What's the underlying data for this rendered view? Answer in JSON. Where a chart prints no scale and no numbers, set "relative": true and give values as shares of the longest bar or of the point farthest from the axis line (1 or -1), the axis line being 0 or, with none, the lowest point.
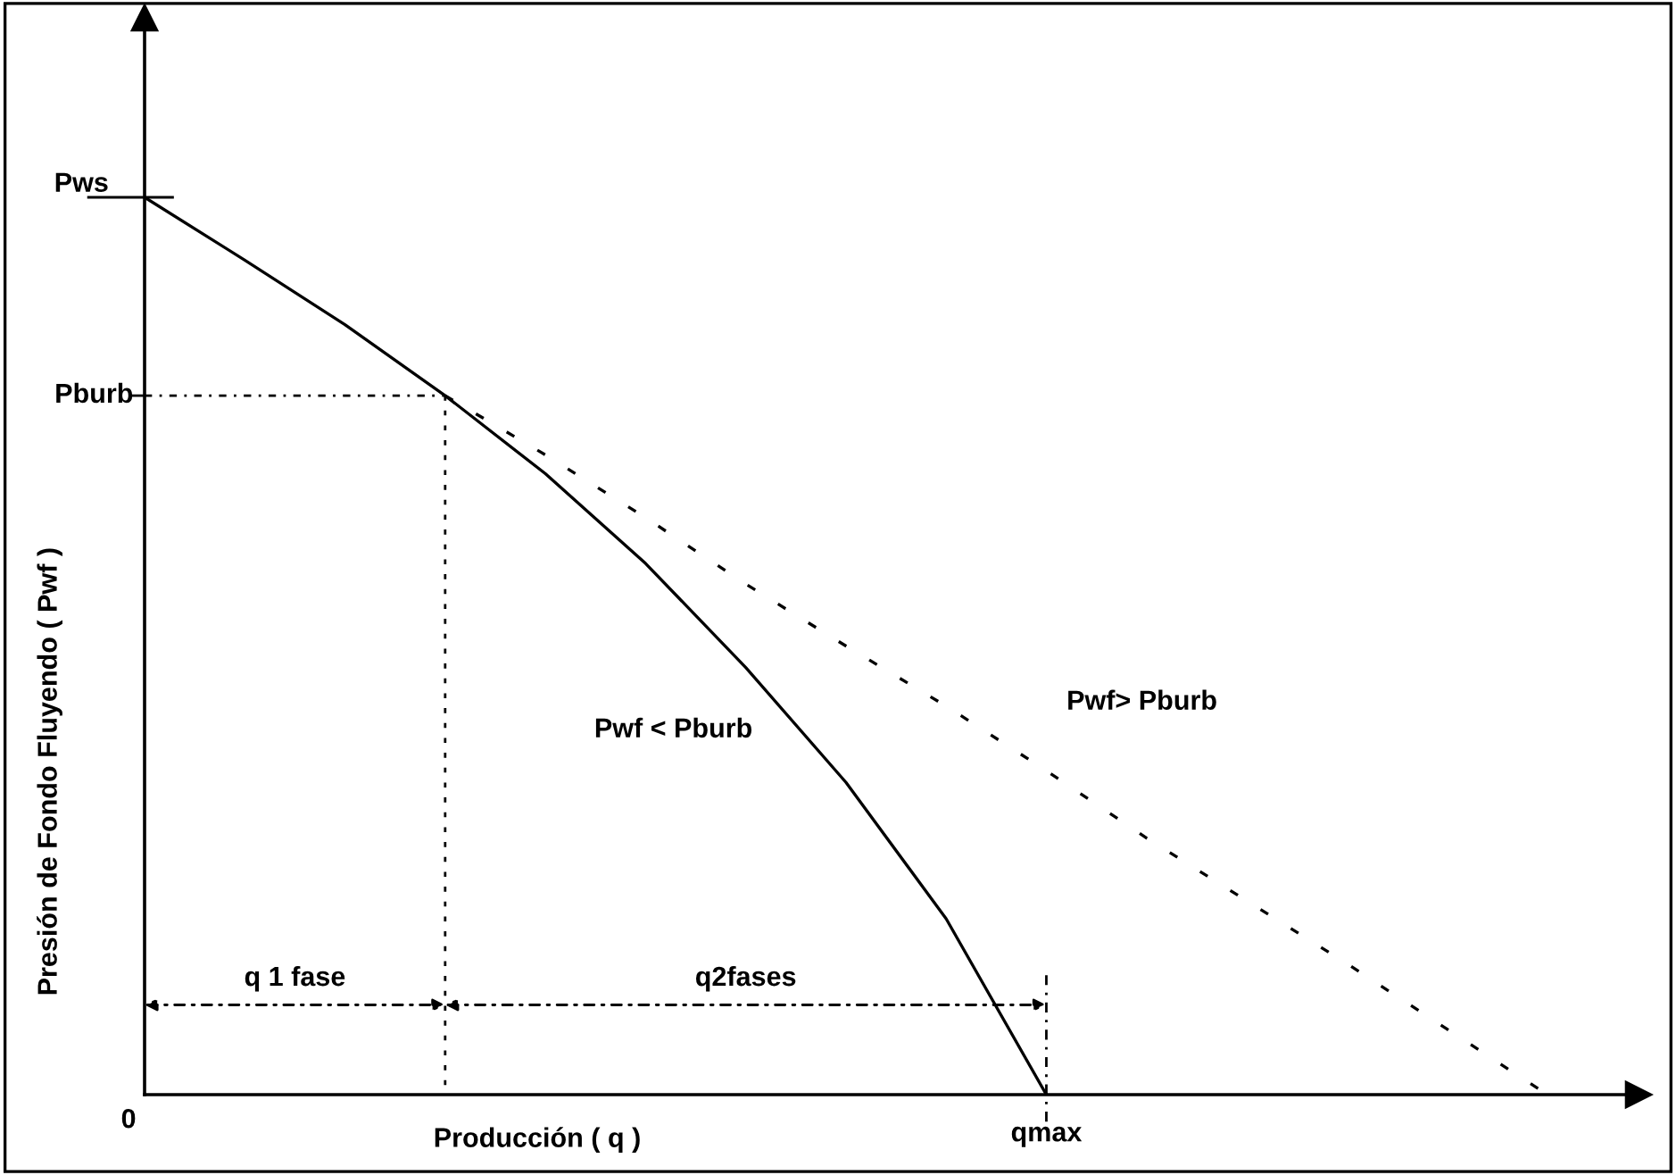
{
  "chart_data": {
    "type": "line",
    "relative": true,
    "xlabel": "Producción ( q )",
    "ylabel": "Presión de Fondo Fluyendo ( Pwf )",
    "categories": [
      null,
      null,
      null,
      null,
      null,
      null,
      null,
      null,
      null,
      null,
      null,
      null,
      null,
      null,
      null
    ],
    "series": [
      {
        "color": "#000000",
        "line_style": "solid",
        "values": [
          1,
          0.93,
          0.858,
          0.779,
          0.692,
          0.592,
          0.476,
          0.348,
          0.196,
          0,
          null,
          null,
          null,
          null,
          null
        ]
      },
      {
        "color": "#000000",
        "line_style": "dashed",
        "values": [
          null,
          null,
          null,
          0.779,
          0.713,
          0.643,
          0.569,
          0.5,
          0.433,
          0.361,
          0.286,
          0.216,
          0.146,
          0.073,
          0
        ]
      }
    ],
    "annotations": [
      "Pws",
      "Pburb",
      "qmax",
      "0",
      "q 1 fase",
      "q2fases",
      "Pwf < Pburb",
      "Pwf> Pburb"
    ],
    "marker": "none"
  }
}
